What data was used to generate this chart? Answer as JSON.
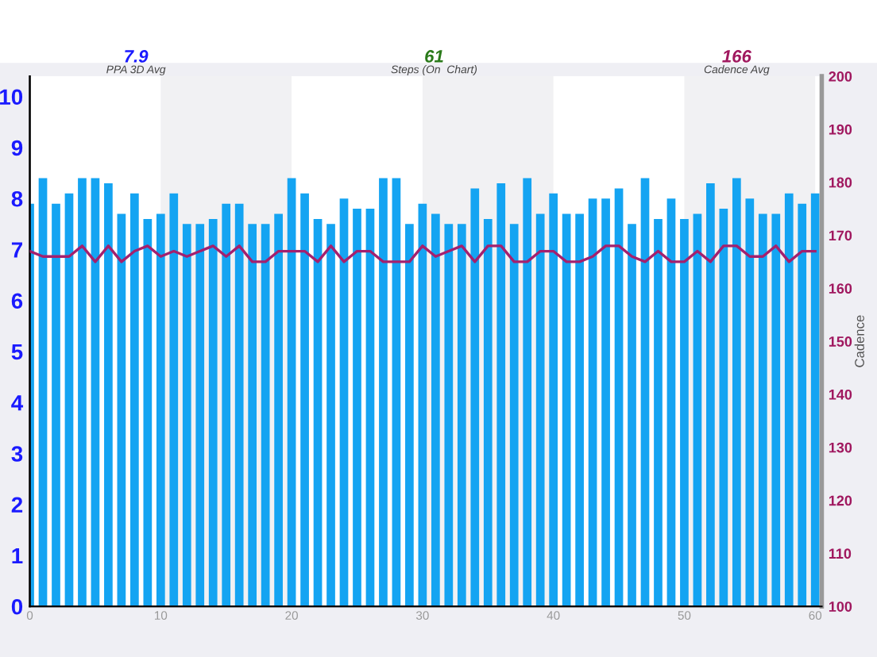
{
  "chart_data": {
    "type": "bar",
    "x": [
      0,
      1,
      2,
      3,
      4,
      5,
      6,
      7,
      8,
      9,
      10,
      11,
      12,
      13,
      14,
      15,
      16,
      17,
      18,
      19,
      20,
      21,
      22,
      23,
      24,
      25,
      26,
      27,
      28,
      29,
      30,
      31,
      32,
      33,
      34,
      35,
      36,
      37,
      38,
      39,
      40,
      41,
      42,
      43,
      44,
      45,
      46,
      47,
      48,
      49,
      50,
      51,
      52,
      53,
      54,
      55,
      56,
      57,
      58,
      59,
      60
    ],
    "series": [
      {
        "color": "#14a4f2",
        "values": [
          7.9,
          8.4,
          7.9,
          8.1,
          8.4,
          8.4,
          8.3,
          7.7,
          8.1,
          7.6,
          7.7,
          8.1,
          7.5,
          7.5,
          7.6,
          7.9,
          7.9,
          7.5,
          7.5,
          7.7,
          8.4,
          8.1,
          7.6,
          7.5,
          8.0,
          7.8,
          7.8,
          8.4,
          8.4,
          7.5,
          7.9,
          7.7,
          7.5,
          7.5,
          8.2,
          7.6,
          8.3,
          7.5,
          8.4,
          7.7,
          8.1,
          7.7,
          7.7,
          8.0,
          8.0,
          8.2,
          7.5,
          8.4,
          7.6,
          8.0,
          7.6,
          7.7,
          8.3,
          7.8,
          8.4,
          8.0,
          7.7,
          7.7,
          8.1,
          7.9,
          8.1
        ]
      },
      {
        "type": "line",
        "axis": "y2",
        "color": "#a3206e",
        "values": [
          167,
          166,
          166,
          166,
          168,
          165,
          168,
          165,
          167,
          168,
          166,
          167,
          166,
          167,
          168,
          166,
          168,
          165,
          165,
          167,
          167,
          167,
          165,
          168,
          165,
          167,
          167,
          165,
          165,
          165,
          168,
          166,
          167,
          168,
          165,
          168,
          168,
          165,
          165,
          167,
          167,
          165,
          165,
          166,
          168,
          168,
          166,
          165,
          167,
          165,
          165,
          167,
          165,
          168,
          168,
          166,
          166,
          168,
          165,
          167,
          167
        ]
      }
    ],
    "xlim": [
      0,
      60.5
    ],
    "xticks": [
      0,
      10,
      20,
      30,
      40,
      50,
      60
    ],
    "ylim": [
      0,
      10.4
    ],
    "yticks": [
      0,
      1,
      2,
      3,
      4,
      5,
      6,
      7,
      8,
      9,
      10
    ],
    "y2lim": [
      100,
      200
    ],
    "y2ticks": [
      100,
      110,
      120,
      130,
      140,
      150,
      160,
      170,
      180,
      190,
      200
    ],
    "y2label": "Cadence",
    "bands": [
      {
        "axis": "x",
        "from": 10,
        "to": 20,
        "color": "#f1f1f3"
      },
      {
        "axis": "x",
        "from": 30,
        "to": 40,
        "color": "#f1f1f3"
      },
      {
        "axis": "x",
        "from": 50,
        "to": 60,
        "color": "#f1f1f3"
      }
    ],
    "annotations": [
      "7.9",
      "PPA 3D Avg",
      "61",
      "Steps (On  Chart)",
      "166",
      "Cadence Avg"
    ],
    "grid": false,
    "legend": false
  }
}
